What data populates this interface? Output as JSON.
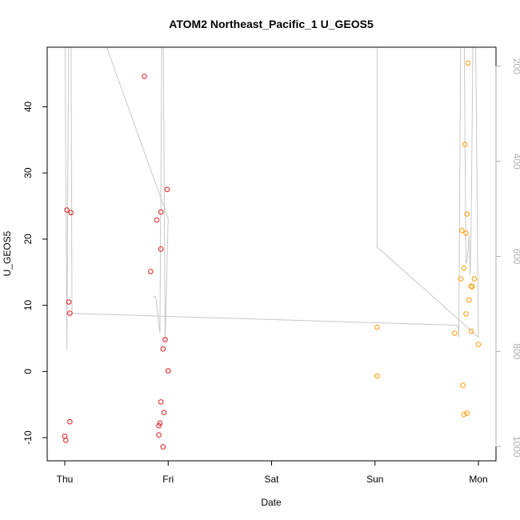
{
  "chart_data": {
    "type": "scatter",
    "title": "ATOM2 Northeast_Pacific_1 U_GEOS5",
    "xlabel": "Date",
    "ylabel": "U_GEOS5",
    "x_ticks": [
      "Thu",
      "Fri",
      "Sat",
      "Sun",
      "Mon"
    ],
    "x_range_days": [
      -0.17,
      4.17
    ],
    "ylim": [
      -13.5,
      49
    ],
    "y_ticks": [
      -10,
      0,
      10,
      20,
      30,
      40
    ],
    "y2_ticks": [
      200,
      400,
      600,
      800,
      1000
    ],
    "y2_range": [
      1030,
      160
    ],
    "y2_color": "#b0b0b0",
    "series": [
      {
        "color": "#e41a1c",
        "points": [
          {
            "x": 0.02,
            "y": 24.4
          },
          {
            "x": 0.06,
            "y": 24.0
          },
          {
            "x": 0.04,
            "y": 10.5
          },
          {
            "x": 0.05,
            "y": 8.8
          },
          {
            "x": 0.05,
            "y": -7.6
          },
          {
            "x": 0.0,
            "y": -9.8
          },
          {
            "x": 0.01,
            "y": -10.4
          },
          {
            "x": 0.77,
            "y": 44.6
          },
          {
            "x": 0.99,
            "y": 27.5
          },
          {
            "x": 0.93,
            "y": 24.1
          },
          {
            "x": 0.89,
            "y": 22.9
          },
          {
            "x": 0.93,
            "y": 18.5
          },
          {
            "x": 0.83,
            "y": 15.1
          },
          {
            "x": 0.97,
            "y": 4.8
          },
          {
            "x": 0.95,
            "y": 3.4
          },
          {
            "x": 1.0,
            "y": 0.1
          },
          {
            "x": 0.93,
            "y": -4.6
          },
          {
            "x": 0.96,
            "y": -6.2
          },
          {
            "x": 0.92,
            "y": -7.8
          },
          {
            "x": 0.91,
            "y": -8.2
          },
          {
            "x": 0.91,
            "y": -9.6
          },
          {
            "x": 0.95,
            "y": -11.4
          }
        ]
      },
      {
        "color": "#ff9900",
        "points": [
          {
            "x": 3.02,
            "y": 6.7
          },
          {
            "x": 3.02,
            "y": -0.7
          },
          {
            "x": 3.9,
            "y": 46.6
          },
          {
            "x": 3.87,
            "y": 34.3
          },
          {
            "x": 3.89,
            "y": 23.8
          },
          {
            "x": 3.84,
            "y": 21.3
          },
          {
            "x": 3.88,
            "y": 20.9
          },
          {
            "x": 3.86,
            "y": 15.6
          },
          {
            "x": 3.83,
            "y": 14.0
          },
          {
            "x": 3.96,
            "y": 14.0
          },
          {
            "x": 3.93,
            "y": 12.9
          },
          {
            "x": 3.94,
            "y": 12.8
          },
          {
            "x": 3.91,
            "y": 10.8
          },
          {
            "x": 3.88,
            "y": 8.7
          },
          {
            "x": 3.93,
            "y": 6.1
          },
          {
            "x": 3.77,
            "y": 5.8
          },
          {
            "x": 4.0,
            "y": 4.1
          },
          {
            "x": 3.85,
            "y": -2.1
          },
          {
            "x": 3.89,
            "y": -6.3
          },
          {
            "x": 3.86,
            "y": -6.5
          }
        ]
      }
    ],
    "altitude_trace": {
      "color": "#c8c8c8",
      "points": [
        [
          0.0,
          60
        ],
        [
          0.02,
          795
        ],
        [
          0.04,
          60
        ],
        [
          0.05,
          60
        ],
        [
          0.06,
          60
        ],
        [
          0.07,
          720
        ],
        [
          3.8,
          745
        ],
        [
          3.81,
          770
        ],
        [
          3.83,
          60
        ],
        [
          3.86,
          60
        ],
        [
          3.88,
          615
        ],
        [
          3.89,
          610
        ],
        [
          3.91,
          555
        ],
        [
          3.92,
          640
        ],
        [
          3.93,
          540
        ],
        [
          3.95,
          60
        ],
        [
          3.97,
          60
        ],
        [
          4.0,
          770
        ],
        [
          3.02,
          580
        ],
        [
          3.02,
          60
        ],
        [
          3.02,
          60
        ],
        [
          0.24,
          60
        ],
        [
          1.0,
          520
        ],
        [
          0.97,
          780
        ],
        [
          0.95,
          60
        ],
        [
          0.94,
          60
        ],
        [
          0.92,
          760
        ],
        [
          0.88,
          685
        ],
        [
          0.85,
          685
        ]
      ]
    }
  }
}
